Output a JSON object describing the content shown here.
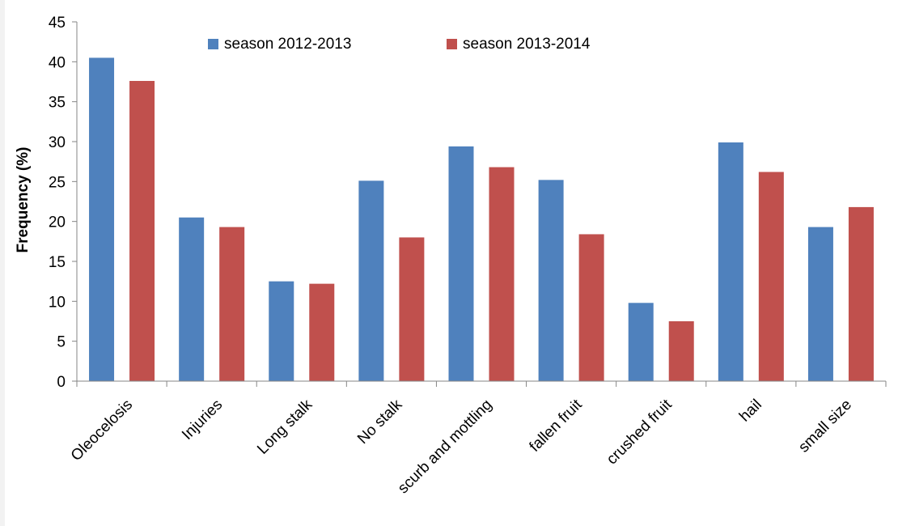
{
  "chart_data": {
    "type": "bar",
    "title": "",
    "xlabel": "",
    "ylabel": "Frequency (%)",
    "ylim": [
      0,
      45
    ],
    "yticks": [
      0,
      5,
      10,
      15,
      20,
      25,
      30,
      35,
      40,
      45
    ],
    "grid": false,
    "legend_position": "top-center",
    "categories": [
      "Oleocelosis",
      "Injuries",
      "Long stalk",
      "No stalk",
      "scurb and mottling",
      "fallen fruit",
      "crushed fruit",
      "hail",
      "small size"
    ],
    "series": [
      {
        "name": "season 2012-2013",
        "color": "#4f81bd",
        "values": [
          40.5,
          20.5,
          12.5,
          25.1,
          29.4,
          25.2,
          9.8,
          29.9,
          19.3
        ]
      },
      {
        "name": "season 2013-2014",
        "color": "#c0504d",
        "values": [
          37.6,
          19.3,
          12.2,
          18.0,
          26.8,
          18.4,
          7.5,
          26.2,
          21.8
        ]
      }
    ]
  }
}
